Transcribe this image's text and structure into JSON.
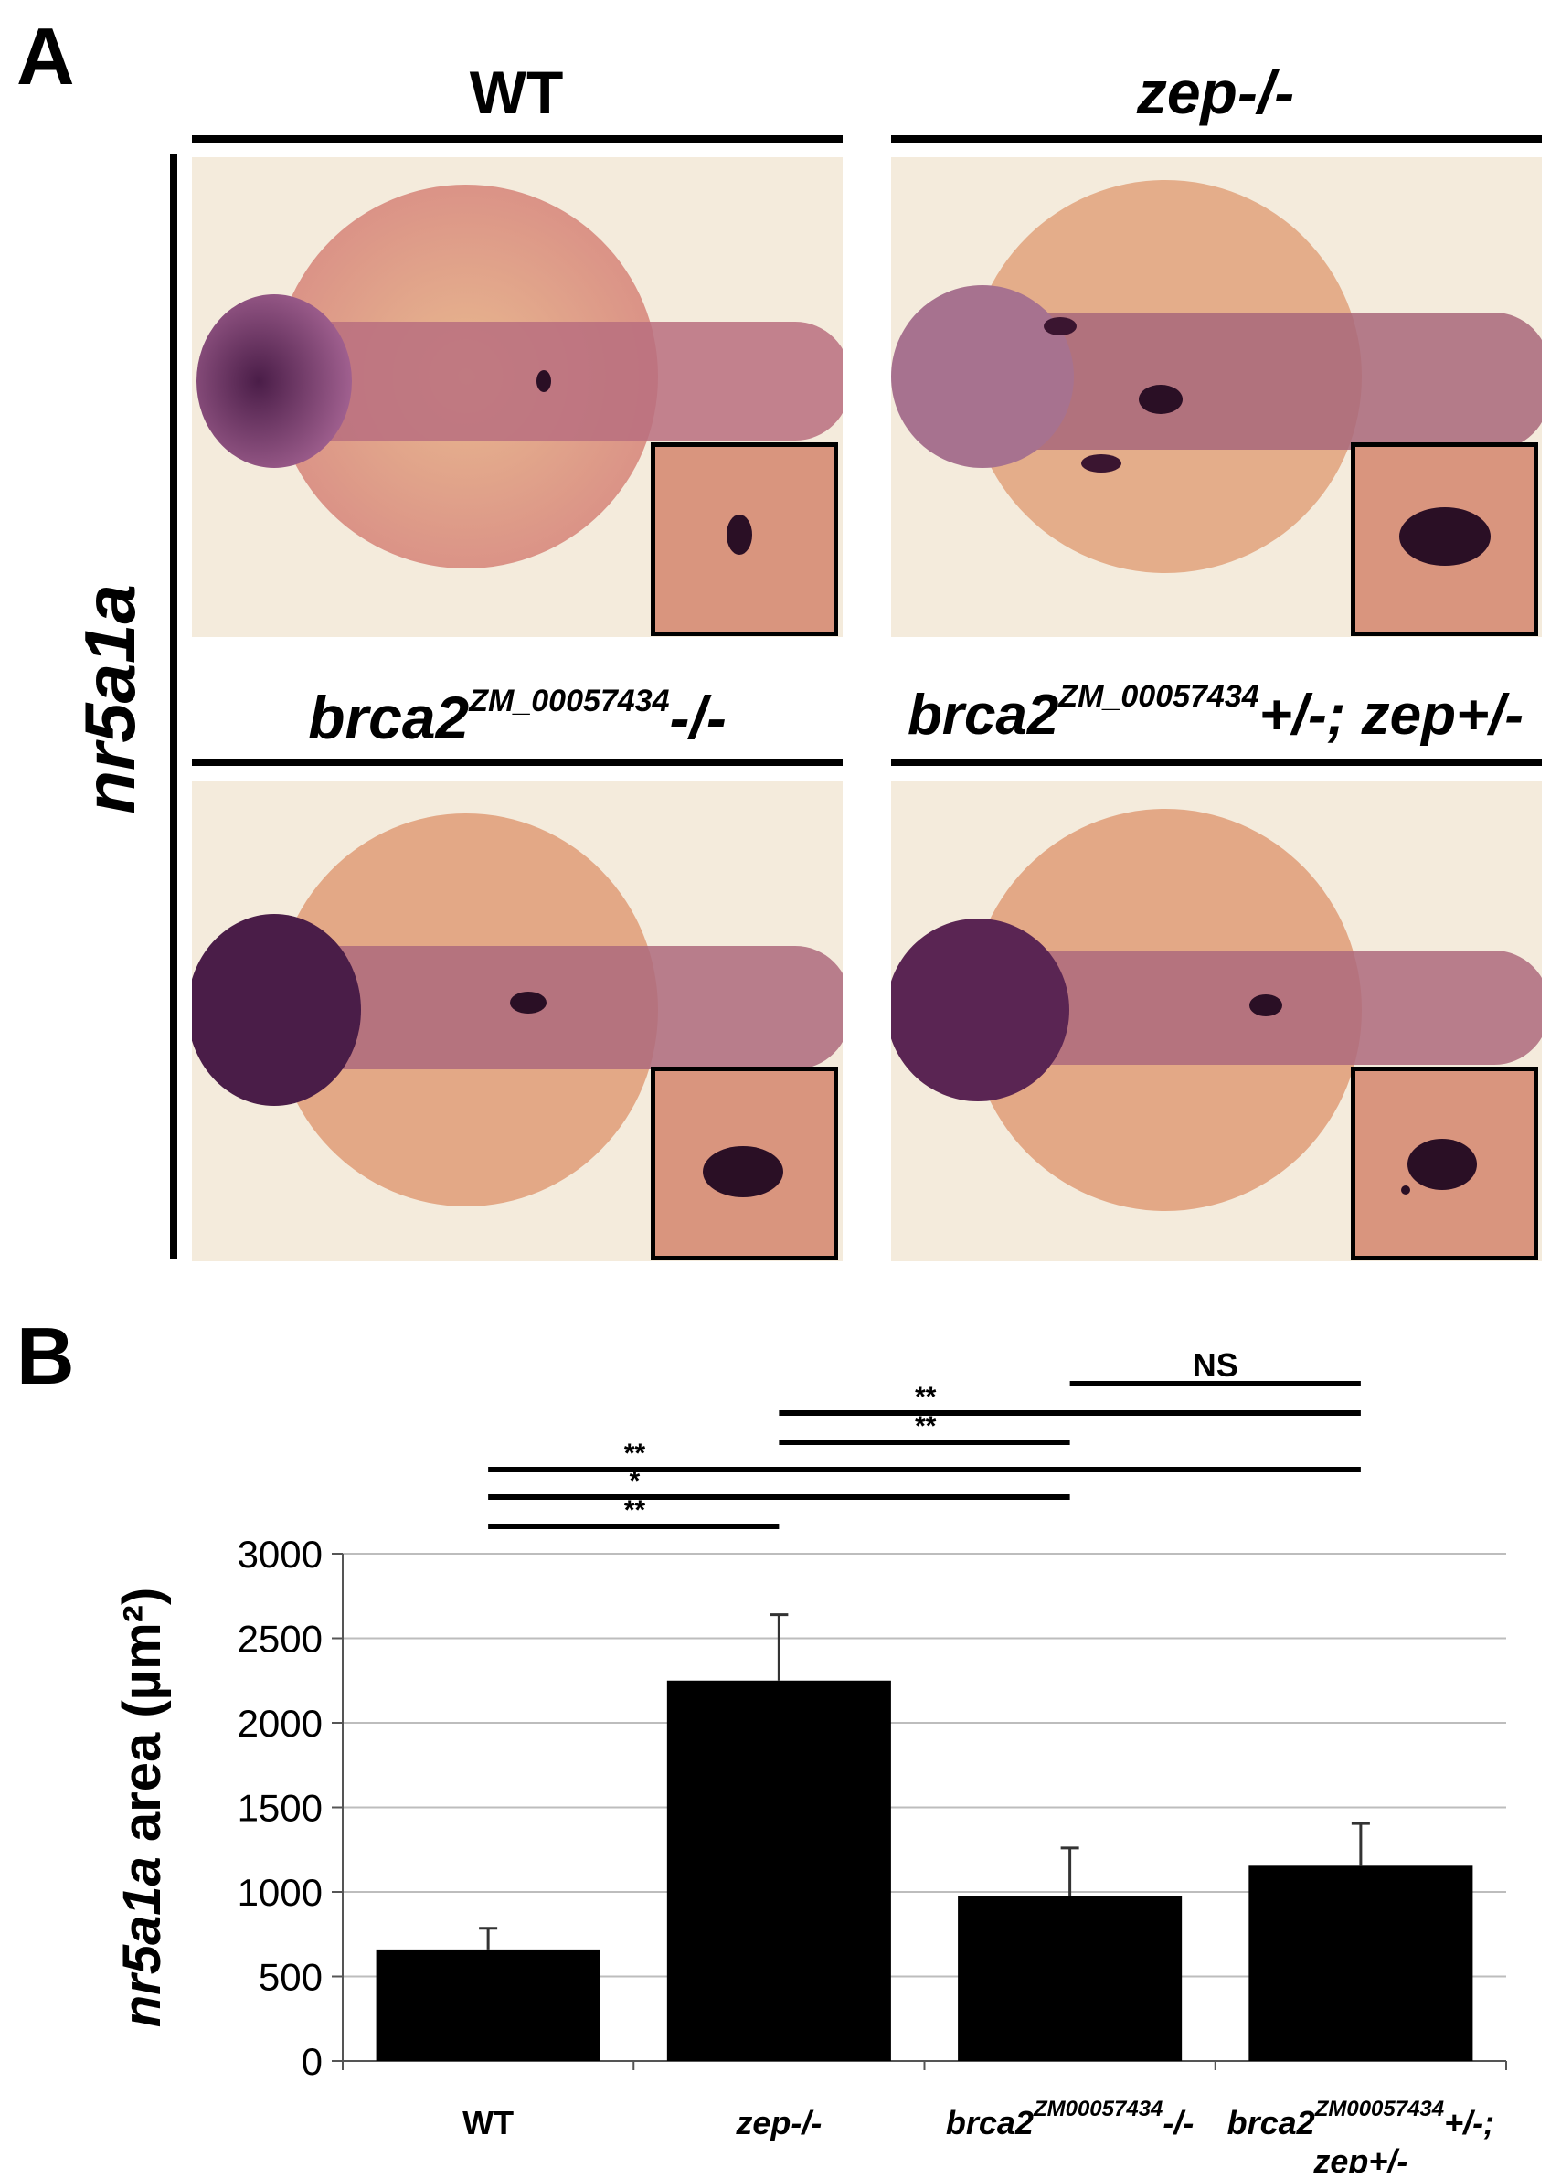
{
  "panel_a": {
    "letter": "A",
    "row_label": "nr5a1a",
    "titles": {
      "wt": "WT",
      "zep": "zep-/-",
      "brca2_base": "brca2",
      "brca2_sup": "ZM_00057434",
      "brca2_suffix": "-/-",
      "double_base": "brca2",
      "double_sup": "ZM_00057434",
      "double_suffix": "+/-; zep+/-"
    }
  },
  "panel_b": {
    "letter": "B"
  },
  "colors": {
    "bar": "#000000",
    "gridline": "#bdbdbd",
    "embryo_pink": "#d9957e",
    "stain_purple": "#3a1530"
  },
  "chart_data": {
    "type": "bar",
    "categories": [
      "WT",
      "zep-/-",
      "brca2 ZM00057434 -/-",
      "brca2 ZM00057434 +/-; zep+/-"
    ],
    "category_labels": [
      {
        "base": "WT",
        "sup": "",
        "suffix": "",
        "line2": ""
      },
      {
        "base": "zep-/-",
        "sup": "",
        "suffix": "",
        "line2": ""
      },
      {
        "base": "brca2",
        "sup": "ZM00057434",
        "suffix": "-/-",
        "line2": ""
      },
      {
        "base": "brca2",
        "sup": "ZM00057434",
        "suffix": "+/-;",
        "line2": "zep+/-"
      }
    ],
    "values": [
      660,
      2250,
      975,
      1155
    ],
    "errors": [
      125,
      390,
      285,
      250
    ],
    "ylabel": "nr5a1a area (µm²)",
    "ylabel_italic": "nr5a1a",
    "ylabel_rest": " area (µm²)",
    "ylim": [
      0,
      3000
    ],
    "yticks": [
      0,
      500,
      1000,
      1500,
      2000,
      2500,
      3000
    ],
    "grid": true,
    "significance": [
      {
        "from": 0,
        "to": 1,
        "label": "**"
      },
      {
        "from": 0,
        "to": 2,
        "label": "*"
      },
      {
        "from": 0,
        "to": 3,
        "label": "**"
      },
      {
        "from": 1,
        "to": 2,
        "label": "**"
      },
      {
        "from": 1,
        "to": 3,
        "label": "**"
      },
      {
        "from": 2,
        "to": 3,
        "label": "NS"
      }
    ]
  }
}
